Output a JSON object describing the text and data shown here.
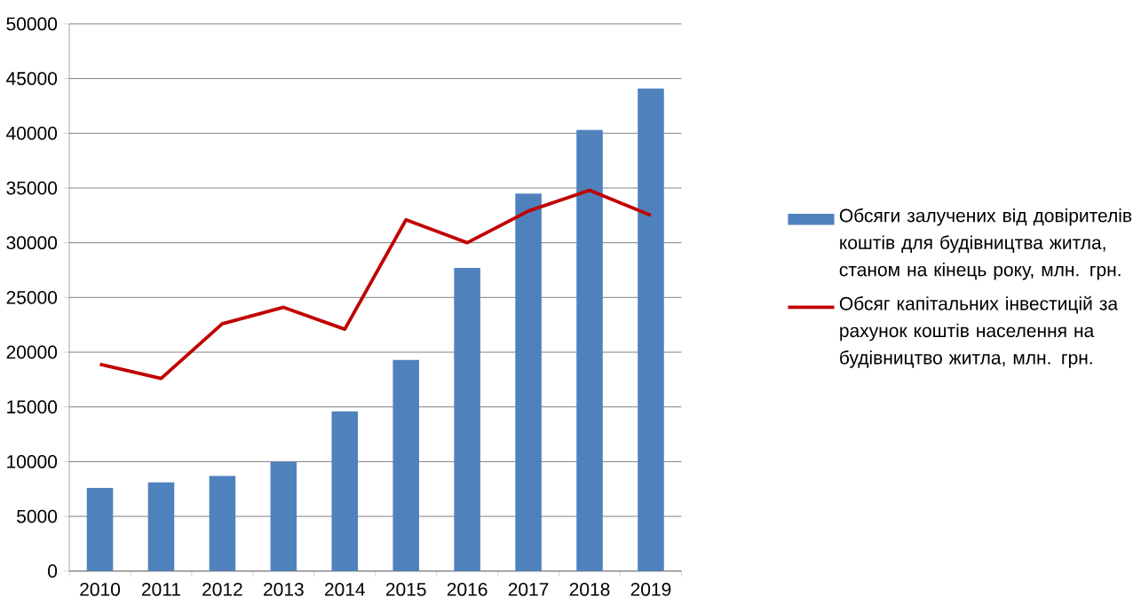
{
  "chart_data": {
    "type": "bar",
    "categories": [
      "2010",
      "2011",
      "2012",
      "2013",
      "2014",
      "2015",
      "2016",
      "2017",
      "2018",
      "2019"
    ],
    "series": [
      {
        "name": "Обсяги залучених від довірителів коштів для будівництва житла, станом на кінець року, млн. грн.",
        "color": "#4f81bd",
        "values": [
          7600,
          8100,
          8700,
          10000,
          14600,
          19300,
          27700,
          34500,
          40300,
          44100
        ]
      },
      {
        "name": "Обсяг капітальних інвестицій за рахунок коштів населення на будівництво житла, млн. грн.",
        "color": "#c00000",
        "type": "line",
        "values": [
          18900,
          17600,
          22600,
          24100,
          22100,
          32100,
          30000,
          32900,
          34800,
          32500
        ]
      }
    ],
    "ylim": [
      0,
      50000
    ],
    "yticks": [
      0,
      5000,
      10000,
      15000,
      20000,
      25000,
      30000,
      35000,
      40000,
      45000,
      50000
    ],
    "grid": "y",
    "legend": "right"
  }
}
